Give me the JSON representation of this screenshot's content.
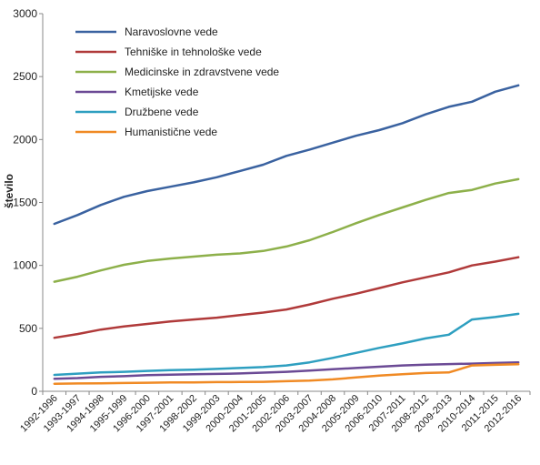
{
  "chart_data": {
    "type": "line",
    "title": "",
    "xlabel": "",
    "ylabel": "število",
    "ylim": [
      0,
      3000
    ],
    "yticks": [
      0,
      500,
      1000,
      1500,
      2000,
      2500,
      3000
    ],
    "grid": false,
    "legend": "top-left",
    "categories": [
      "1992-1996",
      "1993-1997",
      "1994-1998",
      "1995-1999",
      "1996-2000",
      "1997-2001",
      "1998-2002",
      "1999-2003",
      "2000-2004",
      "2001-2005",
      "2002-2006",
      "2003-2007",
      "2004-2008",
      "2005-2009",
      "2006-2010",
      "2007-2011",
      "2008-2012",
      "2009-2013",
      "2010-2014",
      "2011-2015",
      "2012-2016"
    ],
    "series": [
      {
        "name": "Naravoslovne vede",
        "color": "#3a62a0",
        "values": [
          1330,
          1400,
          1480,
          1545,
          1590,
          1625,
          1660,
          1700,
          1750,
          1800,
          1870,
          1920,
          1975,
          2030,
          2075,
          2130,
          2200,
          2260,
          2300,
          2380,
          2430
        ]
      },
      {
        "name": "Tehniške in tehnološke vede",
        "color": "#b03a3a",
        "values": [
          425,
          455,
          490,
          515,
          535,
          555,
          570,
          585,
          605,
          625,
          650,
          690,
          735,
          775,
          820,
          865,
          905,
          945,
          1000,
          1030,
          1065
        ]
      },
      {
        "name": "Medicinske in zdravstvene vede",
        "color": "#8db04a",
        "values": [
          870,
          910,
          960,
          1005,
          1035,
          1055,
          1070,
          1085,
          1095,
          1115,
          1150,
          1200,
          1265,
          1335,
          1400,
          1460,
          1520,
          1575,
          1600,
          1650,
          1685
        ]
      },
      {
        "name": "Kmetijske vede",
        "color": "#6b4a95",
        "values": [
          100,
          105,
          115,
          120,
          128,
          132,
          135,
          138,
          142,
          148,
          155,
          165,
          175,
          185,
          195,
          205,
          212,
          216,
          220,
          225,
          230
        ]
      },
      {
        "name": "Družbene vede",
        "color": "#2e9fc0",
        "values": [
          130,
          140,
          150,
          155,
          162,
          168,
          172,
          178,
          185,
          192,
          205,
          230,
          265,
          305,
          345,
          380,
          420,
          450,
          570,
          590,
          615
        ]
      },
      {
        "name": "Humanistične vede",
        "color": "#f08a24",
        "values": [
          60,
          62,
          63,
          66,
          68,
          70,
          71,
          73,
          74,
          75,
          80,
          85,
          95,
          110,
          125,
          135,
          145,
          150,
          205,
          210,
          215
        ]
      }
    ]
  }
}
